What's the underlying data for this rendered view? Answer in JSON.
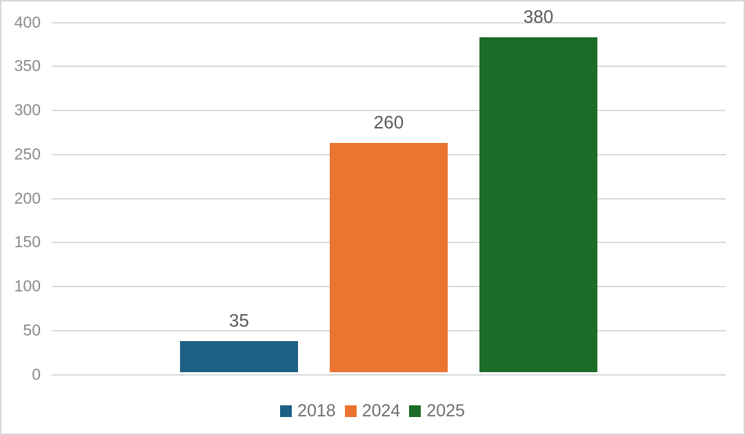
{
  "chart_data": {
    "type": "bar",
    "title": "",
    "xlabel": "",
    "ylabel": "",
    "categories": [
      "2018",
      "2024",
      "2025"
    ],
    "series": [
      {
        "name": "2018",
        "value": 35,
        "color": "#1C6083"
      },
      {
        "name": "2024",
        "value": 260,
        "color": "#E97531"
      },
      {
        "name": "2025",
        "value": 380,
        "color": "#1B6C26"
      }
    ],
    "value_labels": [
      "35",
      "260",
      "380"
    ],
    "yticks": [
      0,
      50,
      100,
      150,
      200,
      250,
      300,
      350,
      400
    ],
    "ylim": [
      0,
      400
    ],
    "grid": true,
    "legend_position": "bottom"
  },
  "colors": {
    "gridline": "#D9D9D9",
    "axis_label": "#8A8A8A",
    "value_label": "#595959",
    "legend_label": "#6F6F6F",
    "frame_border": "#D6D6D6",
    "background": "#FFFFFF"
  }
}
